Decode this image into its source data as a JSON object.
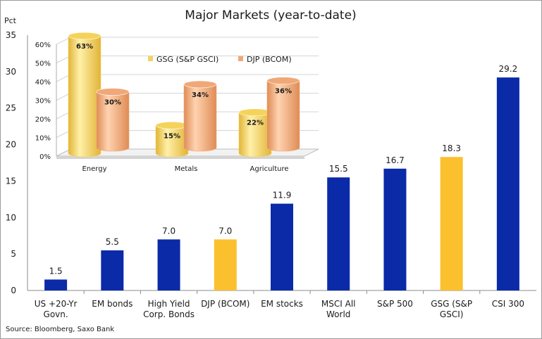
{
  "chart_data": [
    {
      "type": "bar",
      "title": "Major Markets (year-to-date)",
      "ylabel": "Pct",
      "ylim": [
        0,
        35
      ],
      "yticks": [
        "0",
        "5",
        "10",
        "15",
        "20",
        "25",
        "30",
        "35"
      ],
      "grid": false,
      "categories": [
        [
          "US +20-Yr",
          "Govn."
        ],
        [
          "EM bonds"
        ],
        [
          "High Yield",
          "Corp. Bonds"
        ],
        [
          "DJP (BCOM)"
        ],
        [
          "EM stocks"
        ],
        [
          "MSCI All",
          "World"
        ],
        [
          "S&P 500"
        ],
        [
          "GSG (S&P",
          "GSCI)"
        ],
        [
          "CSI 300"
        ]
      ],
      "values": [
        1.5,
        5.5,
        7.0,
        7.0,
        11.9,
        15.5,
        16.7,
        18.3,
        29.2
      ],
      "value_labels": [
        "1.5",
        "5.5",
        "7.0",
        "7.0",
        "11.9",
        "15.5",
        "16.7",
        "18.3",
        "29.2"
      ],
      "bar_colors": [
        "#0a2aa8",
        "#0a2aa8",
        "#0a2aa8",
        "#fbc02d",
        "#0a2aa8",
        "#0a2aa8",
        "#0a2aa8",
        "#fbc02d",
        "#0a2aa8"
      ],
      "source": "Source: Bloomberg, Saxo Bank"
    },
    {
      "type": "bar",
      "style": "3d-cylinder",
      "ylim": [
        0,
        60
      ],
      "yticks": [
        "0%",
        "10%",
        "20%",
        "30%",
        "40%",
        "50%",
        "60%"
      ],
      "categories": [
        "Energy",
        "Metals",
        "Agriculture"
      ],
      "legend_position": "top",
      "series": [
        {
          "name": "GSG (S&P GSCI)",
          "values": [
            63,
            15,
            22
          ],
          "labels": [
            "63%",
            "15%",
            "22%"
          ],
          "color": "#f5d35a"
        },
        {
          "name": "DJP (BCOM)",
          "values": [
            30,
            34,
            36
          ],
          "labels": [
            "30%",
            "34%",
            "36%"
          ],
          "color": "#f0a878"
        }
      ]
    }
  ]
}
